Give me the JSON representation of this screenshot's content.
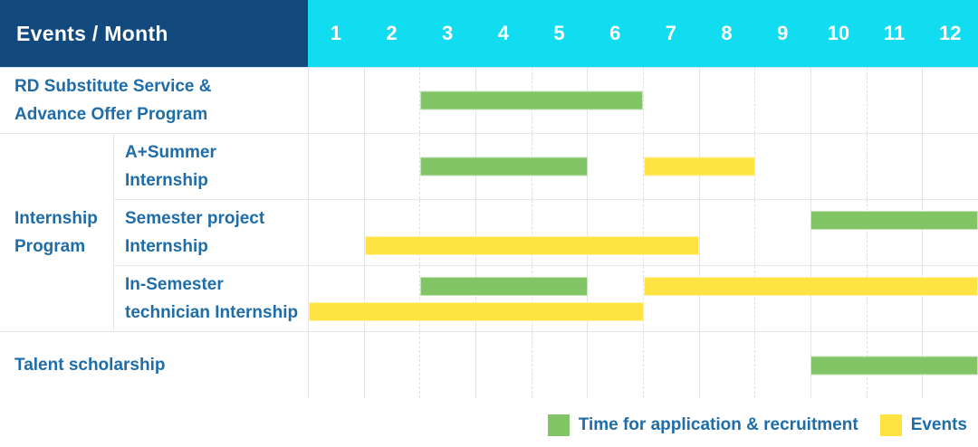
{
  "header": {
    "title": "Events / Month"
  },
  "colors": {
    "header_navy": "#124A7E",
    "header_cyan": "#12DCEF",
    "label_blue": "#1E6DA9",
    "grid_line": "#E4E7E9",
    "green": "#82C566",
    "yellow": "#FFE342"
  },
  "chart_data": {
    "type": "gantt",
    "title": "Events / Month",
    "months": [
      "1",
      "2",
      "3",
      "4",
      "5",
      "6",
      "7",
      "8",
      "9",
      "10",
      "11",
      "12"
    ],
    "group_cell": {
      "label": "Internship Program",
      "label_lines": [
        "Internship",
        "Program"
      ]
    },
    "rows": [
      {
        "group": null,
        "label": "RD Substitute Service & Advance Offer Program",
        "label_lines": [
          "RD Substitute Service &",
          "Advance Offer Program"
        ],
        "bars": [
          {
            "type": "application",
            "start_month": 3,
            "end_month": 6,
            "track": 0
          }
        ]
      },
      {
        "group": "Internship Program",
        "label": "A+Summer Internship",
        "label_lines": [
          "A+Summer",
          "Internship"
        ],
        "bars": [
          {
            "type": "application",
            "start_month": 3,
            "end_month": 5,
            "track": 0
          },
          {
            "type": "events",
            "start_month": 7,
            "end_month": 8,
            "track": 0
          }
        ]
      },
      {
        "group": "Internship Program",
        "label": "Semester project Internship",
        "label_lines": [
          "Semester project",
          "Internship"
        ],
        "bars": [
          {
            "type": "application",
            "start_month": 10,
            "end_month": 12,
            "track": 0
          },
          {
            "type": "events",
            "start_month": 2,
            "end_month": 7,
            "track": 1
          }
        ]
      },
      {
        "group": "Internship Program",
        "label": "In-Semester technician Internship",
        "label_lines": [
          "In-Semester",
          "technician Internship"
        ],
        "bars": [
          {
            "type": "application",
            "start_month": 3,
            "end_month": 5,
            "track": 0
          },
          {
            "type": "events",
            "start_month": 7,
            "end_month": 12,
            "track": 0
          },
          {
            "type": "events",
            "start_month": 1,
            "end_month": 6,
            "track": 1
          }
        ]
      },
      {
        "group": null,
        "label": "Talent scholarship",
        "label_lines": [
          "Talent scholarship"
        ],
        "bars": [
          {
            "type": "application",
            "start_month": 10,
            "end_month": 12,
            "track": 0
          }
        ]
      }
    ],
    "legend": [
      {
        "key": "application",
        "label": "Time for application & recruitment",
        "color": "#82C566"
      },
      {
        "key": "events",
        "label": "Events",
        "color": "#FFE342"
      }
    ],
    "legend_position": "bottom-right",
    "x_range": [
      1,
      12
    ]
  }
}
